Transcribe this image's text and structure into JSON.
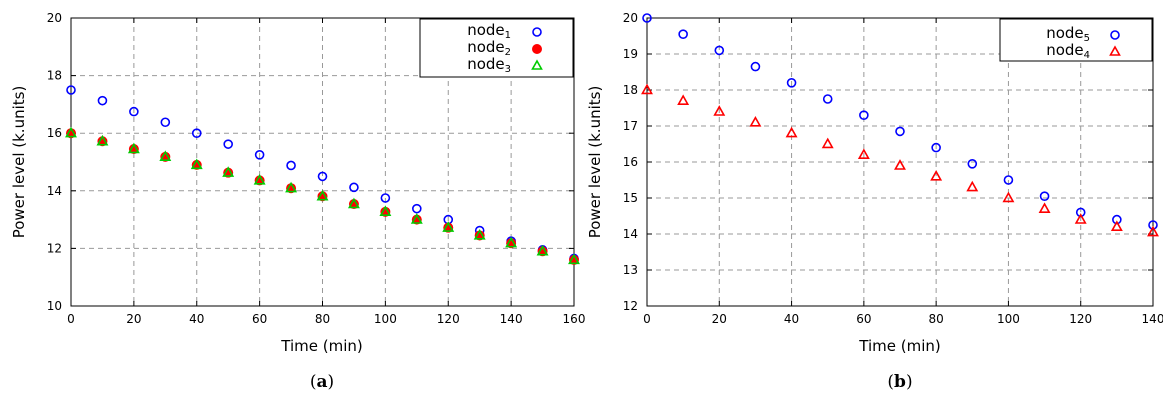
{
  "chart_data": [
    {
      "type": "scatter",
      "caption_prefix": "(",
      "caption_letter": "a",
      "caption_suffix": ")",
      "xlabel": "Time (min)",
      "ylabel": "Power level (k.units)",
      "xlim": [
        0,
        160
      ],
      "ylim": [
        10,
        20
      ],
      "xticks": [
        0,
        20,
        40,
        60,
        80,
        100,
        120,
        140,
        160
      ],
      "yticks": [
        10,
        12,
        14,
        16,
        18,
        20
      ],
      "grid": true,
      "legend_position": "top-right",
      "series": [
        {
          "name": "node",
          "sub": "1",
          "marker": "circle-open",
          "color": "#0000ff",
          "x": [
            0,
            10,
            20,
            30,
            40,
            50,
            60,
            70,
            80,
            90,
            100,
            110,
            120,
            130,
            140,
            150,
            160
          ],
          "y": [
            17.5,
            17.13,
            16.75,
            16.38,
            16.0,
            15.62,
            15.25,
            14.88,
            14.5,
            14.12,
            13.75,
            13.38,
            13.0,
            12.62,
            12.25,
            11.95,
            11.65
          ]
        },
        {
          "name": "node",
          "sub": "2",
          "marker": "circle-filled",
          "color": "#ff0000",
          "x": [
            0,
            10,
            20,
            30,
            40,
            50,
            60,
            70,
            80,
            90,
            100,
            110,
            120,
            130,
            140,
            150,
            160
          ],
          "y": [
            16.0,
            15.72,
            15.45,
            15.18,
            14.9,
            14.63,
            14.36,
            14.09,
            13.81,
            13.54,
            13.27,
            13.0,
            12.72,
            12.45,
            12.18,
            11.9,
            11.6
          ]
        },
        {
          "name": "node",
          "sub": "3",
          "marker": "triangle-open",
          "color": "#00cc00",
          "x": [
            0,
            10,
            20,
            30,
            40,
            50,
            60,
            70,
            80,
            90,
            100,
            110,
            120,
            130,
            140,
            150,
            160
          ],
          "y": [
            16.0,
            15.72,
            15.45,
            15.18,
            14.9,
            14.63,
            14.36,
            14.09,
            13.81,
            13.54,
            13.27,
            13.0,
            12.72,
            12.45,
            12.18,
            11.9,
            11.6
          ]
        }
      ]
    },
    {
      "type": "scatter",
      "caption_prefix": "(",
      "caption_letter": "b",
      "caption_suffix": ")",
      "xlabel": "Time (min)",
      "ylabel": "Power level (k.units)",
      "xlim": [
        0,
        140
      ],
      "ylim": [
        12,
        20
      ],
      "xticks": [
        0,
        20,
        40,
        60,
        80,
        100,
        120,
        140
      ],
      "yticks": [
        12,
        13,
        14,
        15,
        16,
        17,
        18,
        19,
        20
      ],
      "grid": true,
      "legend_position": "top-right",
      "series": [
        {
          "name": "node",
          "sub": "5",
          "marker": "circle-open",
          "color": "#0000ff",
          "x": [
            0,
            10,
            20,
            30,
            40,
            50,
            60,
            70,
            80,
            90,
            100,
            110,
            120,
            130,
            140
          ],
          "y": [
            20.0,
            19.55,
            19.1,
            18.65,
            18.2,
            17.75,
            17.3,
            16.85,
            16.4,
            15.95,
            15.5,
            15.05,
            14.6,
            14.4,
            14.25
          ]
        },
        {
          "name": "node",
          "sub": "4",
          "marker": "triangle-open",
          "color": "#ff0000",
          "x": [
            0,
            10,
            20,
            30,
            40,
            50,
            60,
            70,
            80,
            90,
            100,
            110,
            120,
            130,
            140
          ],
          "y": [
            18.0,
            17.7,
            17.4,
            17.1,
            16.8,
            16.5,
            16.2,
            15.9,
            15.6,
            15.3,
            15.0,
            14.7,
            14.4,
            14.2,
            14.05
          ]
        }
      ]
    }
  ]
}
